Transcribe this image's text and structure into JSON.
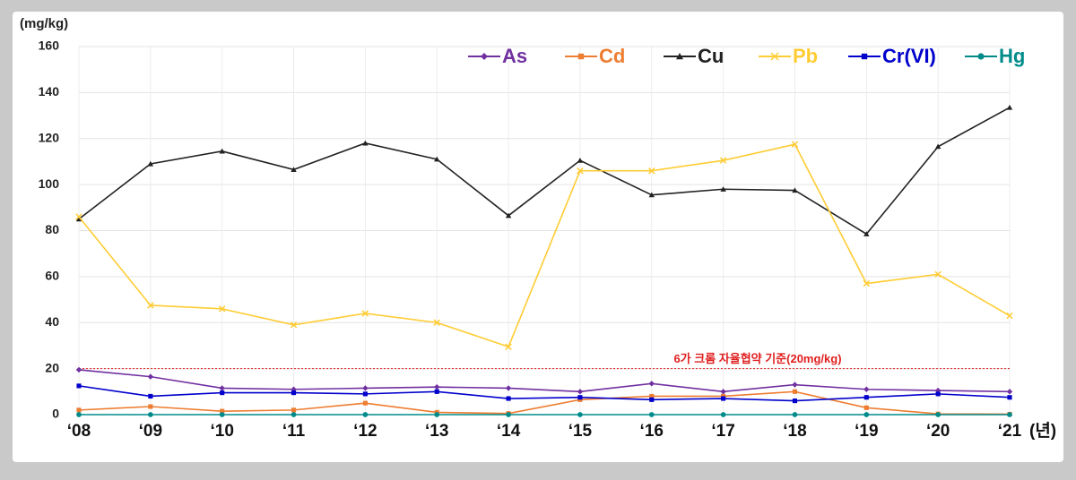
{
  "chart_data": {
    "type": "line",
    "y_label": "(mg/kg)",
    "x_label": "(년)",
    "categories": [
      "‘08",
      "‘09",
      "‘10",
      "‘11",
      "‘12",
      "‘13",
      "‘14",
      "‘15",
      "‘16",
      "‘17",
      "‘18",
      "‘19",
      "‘20",
      "‘21"
    ],
    "ylim": [
      0,
      160
    ],
    "yticks": [
      0,
      20,
      40,
      60,
      80,
      100,
      120,
      140,
      160
    ],
    "grid": true,
    "legend_position": "top",
    "reference_line": {
      "value": 20,
      "label": "6가 크롬 자율협약 기준(20mg/kg)",
      "color": "#e02020"
    },
    "series": [
      {
        "name": "As",
        "color": "#7030a0",
        "marker": "diamond",
        "values": [
          19.5,
          16.5,
          11.5,
          11,
          11.5,
          12,
          11.5,
          10,
          13.5,
          10,
          13,
          11,
          10.5,
          10
        ]
      },
      {
        "name": "Cd",
        "color": "#ed7d31",
        "marker": "square",
        "values": [
          2,
          3.5,
          1.5,
          2,
          5,
          1,
          0.5,
          6.5,
          8,
          8,
          10,
          3,
          0.3,
          0.2
        ]
      },
      {
        "name": "Cu",
        "color": "#222222",
        "marker": "triangle",
        "values": [
          85,
          109,
          114.5,
          106.5,
          118,
          111,
          86.5,
          110.5,
          95.5,
          98,
          97.5,
          78.5,
          116.5,
          133.5
        ]
      },
      {
        "name": "Pb",
        "color": "#ffcc33",
        "marker": "x",
        "values": [
          86,
          47.5,
          46,
          39,
          44,
          40,
          29.5,
          106,
          106,
          110.5,
          117.5,
          57,
          61,
          43
        ]
      },
      {
        "name": "Cr(VI)",
        "color": "#0000cc",
        "marker": "square",
        "values": [
          12.5,
          8,
          9.5,
          9.5,
          9,
          10,
          7,
          7.5,
          6.5,
          7,
          6,
          7.5,
          9,
          7.5
        ]
      },
      {
        "name": "Hg",
        "color": "#008b8b",
        "marker": "circle",
        "values": [
          0,
          0,
          0,
          0,
          0,
          0,
          0,
          0,
          0,
          0,
          0,
          0,
          0,
          0
        ]
      }
    ]
  }
}
